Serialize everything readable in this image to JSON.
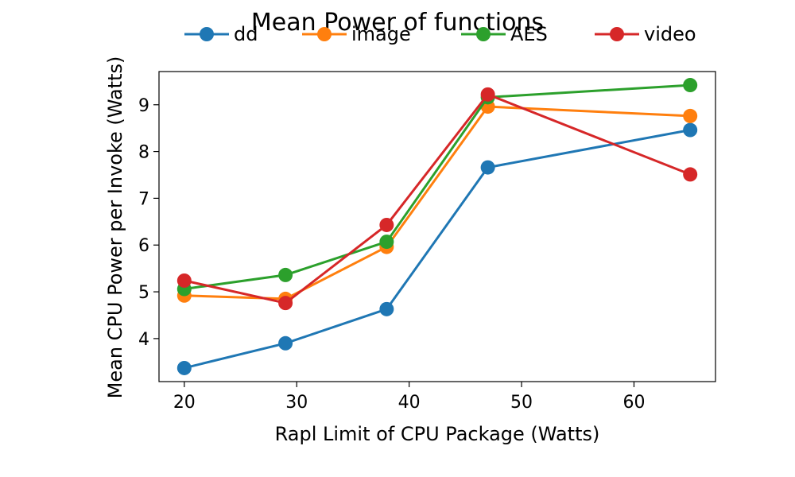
{
  "chart_data": {
    "type": "line",
    "title": "Mean Power of functions",
    "xlabel": "Rapl Limit of CPU Package (Watts)",
    "ylabel": "Mean CPU Power per Invoke (Watts)",
    "x": [
      20,
      29,
      38,
      47,
      65
    ],
    "xlim": [
      17.75,
      67.25
    ],
    "ylim": [
      3.08,
      9.71
    ],
    "xticks": [
      20,
      30,
      40,
      50,
      60
    ],
    "yticks": [
      4,
      5,
      6,
      7,
      8,
      9
    ],
    "legend_position": "top-center",
    "series": [
      {
        "name": "dd",
        "color": "#1f77b4",
        "values": [
          3.37,
          3.9,
          4.63,
          7.66,
          8.46
        ]
      },
      {
        "name": "image",
        "color": "#ff7f0e",
        "values": [
          4.92,
          4.85,
          5.96,
          8.96,
          8.76
        ]
      },
      {
        "name": "AES",
        "color": "#2ca02c",
        "values": [
          5.06,
          5.36,
          6.07,
          9.16,
          9.42
        ]
      },
      {
        "name": "video",
        "color": "#d62728",
        "values": [
          5.24,
          4.76,
          6.43,
          9.22,
          7.51
        ]
      }
    ]
  }
}
